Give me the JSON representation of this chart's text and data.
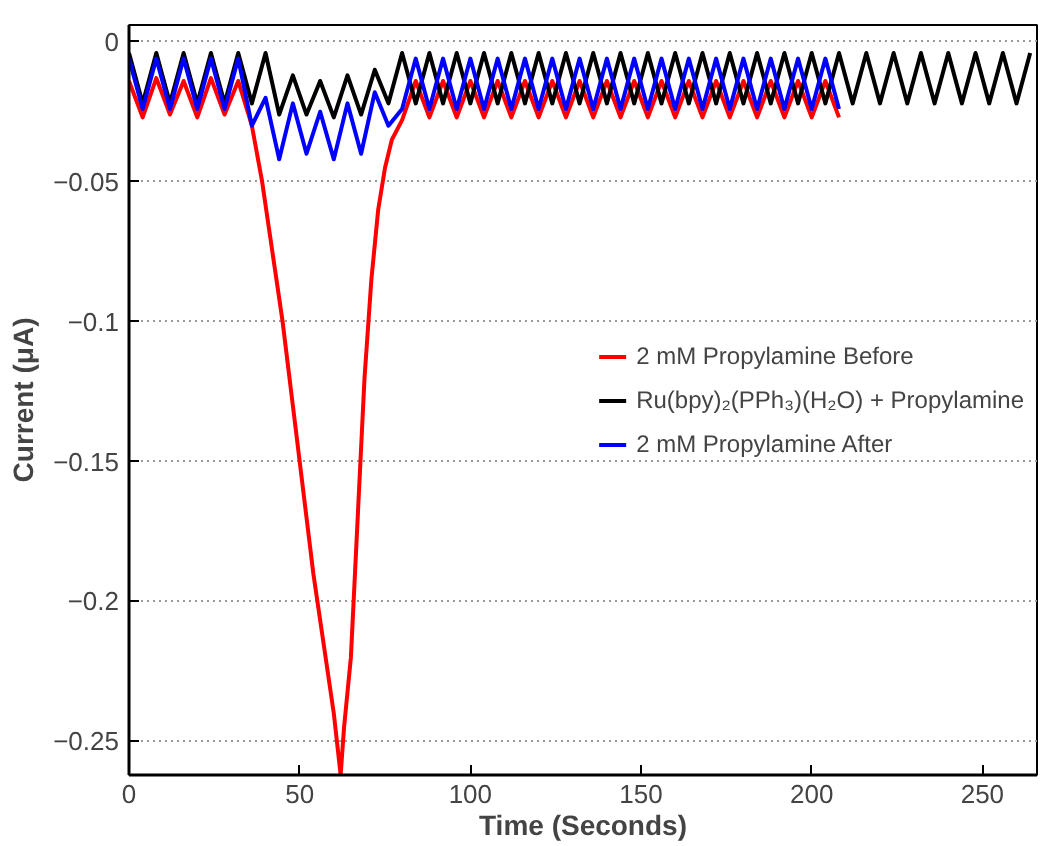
{
  "chart_data": {
    "type": "line",
    "xlabel": "Time (Seconds)",
    "ylabel": "Current (μA)",
    "xlim": [
      0,
      266
    ],
    "ylim": [
      -0.262,
      0.006
    ],
    "xticks": [
      0,
      50,
      100,
      150,
      200,
      250
    ],
    "yticks": [
      {
        "value": -0.25,
        "label": "−0.25"
      },
      {
        "value": -0.2,
        "label": "−0.2"
      },
      {
        "value": -0.15,
        "label": "−0.15"
      },
      {
        "value": -0.1,
        "label": "−0.1"
      },
      {
        "value": -0.05,
        "label": "−0.05"
      },
      0
    ],
    "grid": "y",
    "legend": "right",
    "line_style": "solid",
    "marker": "none",
    "series": [
      {
        "name": "2 mM Propylamine Before",
        "color": "#ff0000",
        "x": [
          0,
          4,
          8,
          12,
          16,
          20,
          24,
          28,
          32,
          36,
          39,
          42,
          45,
          48,
          51,
          54,
          57,
          60,
          62,
          63,
          65,
          67,
          69,
          71,
          73,
          75,
          77,
          80,
          84,
          88,
          92,
          96,
          100,
          104,
          108,
          112,
          116,
          120,
          124,
          128,
          132,
          136,
          140,
          144,
          148,
          152,
          156,
          160,
          164,
          168,
          172,
          176,
          180,
          184,
          188,
          192,
          196,
          200,
          204,
          208
        ],
        "values": [
          -0.014,
          -0.027,
          -0.013,
          -0.026,
          -0.014,
          -0.027,
          -0.013,
          -0.026,
          -0.014,
          -0.03,
          -0.05,
          -0.075,
          -0.1,
          -0.13,
          -0.16,
          -0.19,
          -0.215,
          -0.24,
          -0.262,
          -0.245,
          -0.22,
          -0.17,
          -0.12,
          -0.085,
          -0.06,
          -0.045,
          -0.035,
          -0.028,
          -0.014,
          -0.027,
          -0.014,
          -0.027,
          -0.014,
          -0.027,
          -0.014,
          -0.027,
          -0.014,
          -0.027,
          -0.014,
          -0.027,
          -0.014,
          -0.027,
          -0.014,
          -0.027,
          -0.014,
          -0.027,
          -0.014,
          -0.027,
          -0.014,
          -0.027,
          -0.014,
          -0.027,
          -0.014,
          -0.027,
          -0.014,
          -0.027,
          -0.014,
          -0.027,
          -0.014,
          -0.027
        ]
      },
      {
        "name": "Ru(bpy)₂(PPh₃)(H₂O) + Propylamine",
        "color": "#000000",
        "x": [
          0,
          4,
          8,
          12,
          16,
          20,
          24,
          28,
          32,
          36,
          40,
          44,
          48,
          52,
          56,
          60,
          64,
          68,
          72,
          76,
          80,
          84,
          88,
          92,
          96,
          100,
          104,
          108,
          112,
          116,
          120,
          124,
          128,
          132,
          136,
          140,
          144,
          148,
          152,
          156,
          160,
          164,
          168,
          172,
          176,
          180,
          184,
          188,
          192,
          196,
          200,
          204,
          208,
          212,
          216,
          220,
          224,
          228,
          232,
          236,
          240,
          244,
          248,
          252,
          256,
          260,
          264
        ],
        "values": [
          -0.004,
          -0.022,
          -0.004,
          -0.022,
          -0.004,
          -0.022,
          -0.004,
          -0.022,
          -0.004,
          -0.022,
          -0.004,
          -0.026,
          -0.012,
          -0.026,
          -0.014,
          -0.027,
          -0.012,
          -0.026,
          -0.01,
          -0.022,
          -0.004,
          -0.022,
          -0.004,
          -0.022,
          -0.004,
          -0.022,
          -0.004,
          -0.022,
          -0.004,
          -0.022,
          -0.004,
          -0.022,
          -0.004,
          -0.022,
          -0.004,
          -0.022,
          -0.004,
          -0.022,
          -0.004,
          -0.022,
          -0.004,
          -0.022,
          -0.004,
          -0.022,
          -0.004,
          -0.022,
          -0.004,
          -0.022,
          -0.004,
          -0.022,
          -0.004,
          -0.022,
          -0.004,
          -0.022,
          -0.004,
          -0.022,
          -0.004,
          -0.022,
          -0.004,
          -0.022,
          -0.004,
          -0.022,
          -0.004,
          -0.022,
          -0.004,
          -0.022,
          -0.004
        ]
      },
      {
        "name": "2 mM Propylamine After",
        "color": "#0000ff",
        "x": [
          0,
          4,
          8,
          12,
          16,
          20,
          24,
          28,
          32,
          36,
          40,
          44,
          48,
          52,
          56,
          60,
          64,
          68,
          72,
          76,
          80,
          84,
          88,
          92,
          96,
          100,
          104,
          108,
          112,
          116,
          120,
          124,
          128,
          132,
          136,
          140,
          144,
          148,
          152,
          156,
          160,
          164,
          168,
          172,
          176,
          180,
          184,
          188,
          192,
          196,
          200,
          204,
          208
        ],
        "values": [
          -0.006,
          -0.024,
          -0.006,
          -0.024,
          -0.006,
          -0.024,
          -0.006,
          -0.024,
          -0.006,
          -0.03,
          -0.02,
          -0.042,
          -0.022,
          -0.04,
          -0.025,
          -0.042,
          -0.022,
          -0.04,
          -0.018,
          -0.03,
          -0.024,
          -0.006,
          -0.024,
          -0.006,
          -0.024,
          -0.006,
          -0.024,
          -0.006,
          -0.024,
          -0.006,
          -0.024,
          -0.006,
          -0.024,
          -0.006,
          -0.024,
          -0.006,
          -0.024,
          -0.006,
          -0.024,
          -0.006,
          -0.024,
          -0.006,
          -0.024,
          -0.006,
          -0.024,
          -0.006,
          -0.024,
          -0.006,
          -0.024,
          -0.006,
          -0.024,
          -0.006,
          -0.024
        ]
      }
    ]
  }
}
